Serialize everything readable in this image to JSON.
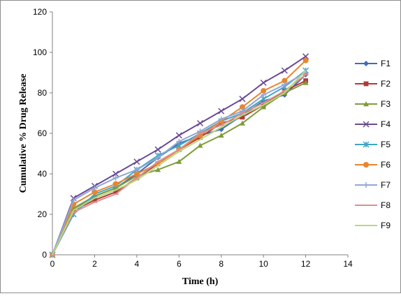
{
  "chart_data": {
    "type": "line",
    "xlabel": "Time (h)",
    "ylabel": "Cumulative % Drug Release",
    "xlim": [
      0,
      14
    ],
    "ylim": [
      0,
      120
    ],
    "xticks": [
      0,
      2,
      4,
      6,
      8,
      10,
      12,
      14
    ],
    "yticks": [
      0,
      20,
      40,
      60,
      80,
      100,
      120
    ],
    "grid": false,
    "legend_position": "right",
    "x": [
      0,
      1,
      2,
      3,
      4,
      5,
      6,
      7,
      8,
      9,
      10,
      11,
      12
    ],
    "series": [
      {
        "name": "F1",
        "color": "#3f6db5",
        "marker": "diamond",
        "values": [
          0,
          22,
          29,
          33,
          40,
          48,
          55,
          59,
          62,
          69,
          76,
          79,
          89
        ]
      },
      {
        "name": "F2",
        "color": "#b03a3a",
        "marker": "square",
        "values": [
          0,
          22,
          27,
          31,
          38,
          45,
          52,
          58,
          65,
          68,
          74,
          81,
          86
        ]
      },
      {
        "name": "F3",
        "color": "#7f9c3a",
        "marker": "triangle",
        "values": [
          0,
          23,
          29,
          33,
          39,
          42,
          46,
          54,
          59,
          65,
          73,
          80,
          85
        ]
      },
      {
        "name": "F4",
        "color": "#6a4a96",
        "marker": "x",
        "values": [
          0,
          28,
          34,
          40,
          46,
          52,
          59,
          65,
          71,
          77,
          85,
          91,
          98
        ]
      },
      {
        "name": "F5",
        "color": "#3fa6c4",
        "marker": "star",
        "values": [
          0,
          20,
          30,
          34,
          42,
          49,
          54,
          60,
          66,
          70,
          77,
          83,
          91
        ]
      },
      {
        "name": "F6",
        "color": "#e8852f",
        "marker": "circle",
        "values": [
          0,
          25,
          31,
          35,
          40,
          45,
          52,
          59,
          66,
          73,
          81,
          86,
          96
        ]
      },
      {
        "name": "F7",
        "color": "#8fa8d6",
        "marker": "plus",
        "values": [
          0,
          27,
          33,
          38,
          42,
          48,
          56,
          61,
          67,
          71,
          79,
          84,
          90
        ]
      },
      {
        "name": "F8",
        "color": "#e08d8d",
        "marker": "dash",
        "values": [
          0,
          21,
          26,
          30,
          38,
          46,
          52,
          60,
          64,
          70,
          75,
          81,
          89
        ]
      },
      {
        "name": "F9",
        "color": "#b8d87c",
        "marker": "line",
        "values": [
          0,
          22,
          28,
          32,
          37,
          44,
          51,
          57,
          63,
          69,
          74,
          80,
          91
        ]
      }
    ]
  }
}
